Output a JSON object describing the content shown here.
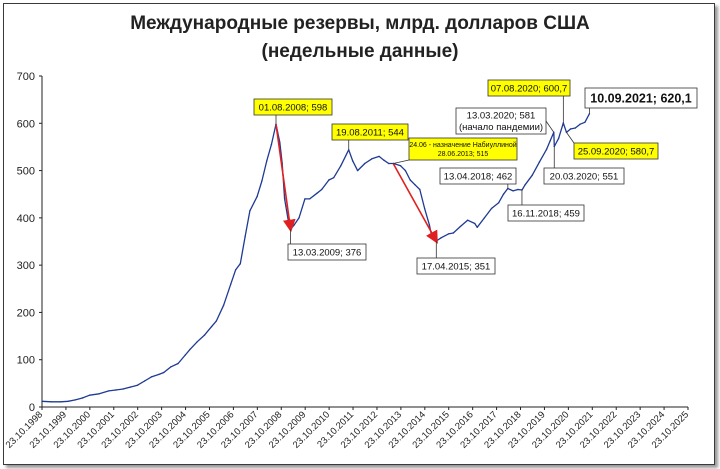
{
  "chart_data": {
    "type": "line",
    "title": "Международные резервы, млрд. долларов США",
    "subtitle": "(недельные данные)",
    "xlabel": "",
    "ylabel": "",
    "ylim": [
      0,
      700
    ],
    "yticks": [
      0,
      100,
      200,
      300,
      400,
      500,
      600,
      700
    ],
    "grid": false,
    "legend": "none",
    "xticks": [
      "23.10.1998",
      "23.10.1999",
      "23.10.2000",
      "23.10.2001",
      "23.10.2002",
      "23.10.2003",
      "23.10.2004",
      "23.10.2005",
      "23.10.2006",
      "23.10.2007",
      "23.10.2008",
      "23.10.2009",
      "23.10.2010",
      "23.10.2011",
      "23.10.2012",
      "23.10.2013",
      "23.10.2014",
      "23.10.2015",
      "23.10.2016",
      "23.10.2017",
      "23.10.2018",
      "23.10.2019",
      "23.10.2020",
      "23.10.2021",
      "23.10.2022",
      "23.10.2023",
      "23.10.2024",
      "23.10.2025"
    ],
    "series": [
      {
        "color": "#1f3a93",
        "points": [
          [
            1998.81,
            12
          ],
          [
            1999.2,
            11
          ],
          [
            1999.6,
            11
          ],
          [
            1999.9,
            12
          ],
          [
            2000.2,
            15
          ],
          [
            2000.5,
            19
          ],
          [
            2000.8,
            25
          ],
          [
            2001.2,
            28
          ],
          [
            2001.6,
            34
          ],
          [
            2001.9,
            36
          ],
          [
            2002.2,
            38
          ],
          [
            2002.5,
            42
          ],
          [
            2002.8,
            46
          ],
          [
            2003.1,
            55
          ],
          [
            2003.4,
            64
          ],
          [
            2003.7,
            69
          ],
          [
            2003.9,
            73
          ],
          [
            2004.2,
            85
          ],
          [
            2004.5,
            92
          ],
          [
            2004.8,
            110
          ],
          [
            2005.0,
            122
          ],
          [
            2005.3,
            138
          ],
          [
            2005.6,
            152
          ],
          [
            2005.9,
            170
          ],
          [
            2006.1,
            182
          ],
          [
            2006.4,
            215
          ],
          [
            2006.7,
            260
          ],
          [
            2006.9,
            290
          ],
          [
            2007.1,
            303
          ],
          [
            2007.3,
            360
          ],
          [
            2007.5,
            415
          ],
          [
            2007.8,
            445
          ],
          [
            2008.0,
            478
          ],
          [
            2008.2,
            520
          ],
          [
            2008.4,
            555
          ],
          [
            2008.59,
            598
          ],
          [
            2008.75,
            560
          ],
          [
            2008.85,
            515
          ],
          [
            2008.95,
            440
          ],
          [
            2009.1,
            395
          ],
          [
            2009.2,
            376
          ],
          [
            2009.35,
            385
          ],
          [
            2009.55,
            400
          ],
          [
            2009.8,
            440
          ],
          [
            2010.0,
            440
          ],
          [
            2010.3,
            452
          ],
          [
            2010.5,
            460
          ],
          [
            2010.8,
            480
          ],
          [
            2011.0,
            485
          ],
          [
            2011.3,
            510
          ],
          [
            2011.63,
            544
          ],
          [
            2011.8,
            520
          ],
          [
            2012.0,
            500
          ],
          [
            2012.3,
            515
          ],
          [
            2012.6,
            525
          ],
          [
            2012.9,
            530
          ],
          [
            2013.1,
            522
          ],
          [
            2013.3,
            515
          ],
          [
            2013.5,
            515
          ],
          [
            2013.8,
            510
          ],
          [
            2014.0,
            500
          ],
          [
            2014.2,
            480
          ],
          [
            2014.4,
            470
          ],
          [
            2014.6,
            460
          ],
          [
            2014.8,
            420
          ],
          [
            2015.0,
            385
          ],
          [
            2015.1,
            360
          ],
          [
            2015.29,
            351
          ],
          [
            2015.5,
            358
          ],
          [
            2015.8,
            366
          ],
          [
            2016.0,
            368
          ],
          [
            2016.3,
            382
          ],
          [
            2016.6,
            395
          ],
          [
            2016.9,
            388
          ],
          [
            2017.0,
            380
          ],
          [
            2017.3,
            400
          ],
          [
            2017.6,
            420
          ],
          [
            2017.9,
            432
          ],
          [
            2018.1,
            450
          ],
          [
            2018.28,
            462
          ],
          [
            2018.5,
            457
          ],
          [
            2018.7,
            460
          ],
          [
            2018.87,
            459
          ],
          [
            2019.0,
            470
          ],
          [
            2019.3,
            490
          ],
          [
            2019.6,
            518
          ],
          [
            2019.9,
            545
          ],
          [
            2020.05,
            563
          ],
          [
            2020.2,
            581
          ],
          [
            2020.22,
            551
          ],
          [
            2020.4,
            568
          ],
          [
            2020.6,
            600.7
          ],
          [
            2020.73,
            580.7
          ],
          [
            2020.9,
            588
          ],
          [
            2021.1,
            590
          ],
          [
            2021.3,
            598
          ],
          [
            2021.5,
            602
          ],
          [
            2021.69,
            620.1
          ]
        ]
      }
    ],
    "arrows": [
      {
        "from": [
          2008.59,
          598
        ],
        "to": [
          2009.2,
          376
        ],
        "color": "#e02020"
      },
      {
        "from": [
          2013.49,
          515
        ],
        "to": [
          2015.29,
          351
        ],
        "color": "#e02020"
      }
    ],
    "annotations": [
      {
        "text": "01.08.2008; 598",
        "style": "yellow"
      },
      {
        "text": "13.03.2009; 376",
        "style": "white"
      },
      {
        "text": "19.08.2011; 544",
        "style": "yellow"
      },
      {
        "text": "24.06 - назначение Набиуллиной",
        "style": "yellow"
      },
      {
        "text": "28.06.2013; 515",
        "style": "yellow"
      },
      {
        "text": "17.04.2015; 351",
        "style": "white"
      },
      {
        "text": "13.04.2018; 462",
        "style": "white"
      },
      {
        "text": "16.11.2018; 459",
        "style": "white"
      },
      {
        "text": "13.03.2020; 581",
        "style": "white"
      },
      {
        "text": "(начало пандемии)",
        "style": "white"
      },
      {
        "text": "07.08.2020; 600,7",
        "style": "yellow"
      },
      {
        "text": "10.09.2021; 620,1",
        "style": "white"
      },
      {
        "text": "25.09.2020; 580,7",
        "style": "yellow"
      },
      {
        "text": "20.03.2020; 551",
        "style": "white"
      }
    ]
  }
}
